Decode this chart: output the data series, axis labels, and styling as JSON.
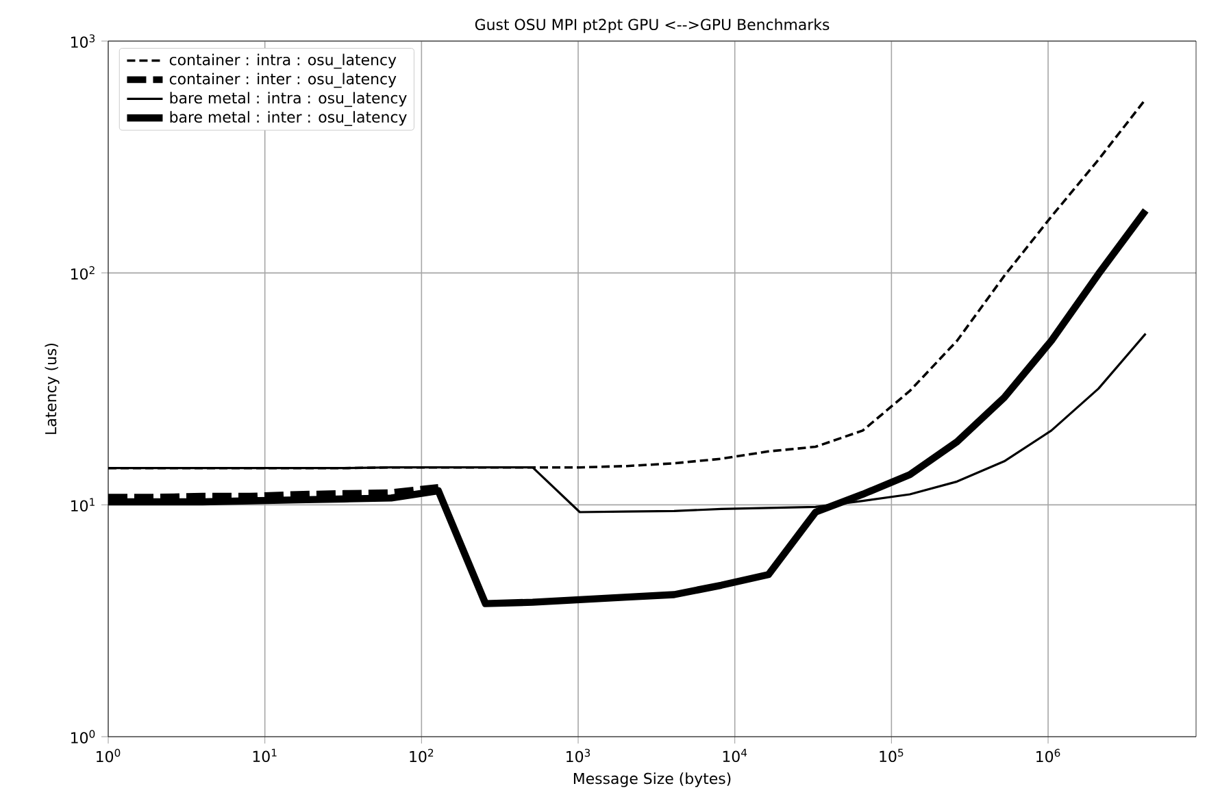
{
  "chart_data": {
    "type": "line",
    "title": "Gust OSU MPI pt2pt GPU <-->GPU Benchmarks",
    "xlabel": "Message Size (bytes)",
    "ylabel": "Latency (us)",
    "x": [
      1,
      2,
      4,
      8,
      16,
      32,
      64,
      128,
      256,
      512,
      1024,
      2048,
      4096,
      8192,
      16384,
      32768,
      65536,
      131072,
      262144,
      524288,
      1048576,
      2097152,
      4194304
    ],
    "series": [
      {
        "name": "container : intra : osu_latency",
        "color": "#000000",
        "line_style": "dashed",
        "values": [
          14.4,
          14.4,
          14.4,
          14.4,
          14.4,
          14.4,
          14.5,
          14.5,
          14.5,
          14.5,
          14.5,
          14.7,
          15.1,
          15.8,
          17.0,
          17.8,
          20.9,
          31,
          51,
          97,
          175,
          308,
          562
        ]
      },
      {
        "name": "container : inter : osu_latency",
        "color": "#000000",
        "line_style": "dashed",
        "values": [
          10.8,
          10.8,
          10.9,
          10.9,
          11.1,
          11.2,
          11.3,
          11.9,
          null,
          null,
          null,
          null,
          null,
          null,
          null,
          null,
          null,
          null,
          null,
          null,
          null,
          null,
          null
        ]
      },
      {
        "name": "bare metal : intra : osu_latency",
        "color": "#000000",
        "line_style": "solid",
        "values": [
          14.4,
          14.4,
          14.4,
          14.4,
          14.4,
          14.4,
          14.5,
          14.5,
          14.5,
          14.5,
          9.3,
          9.35,
          9.4,
          9.6,
          9.7,
          9.8,
          10.4,
          11.1,
          12.6,
          15.4,
          20.9,
          31.7,
          54.7
        ]
      },
      {
        "name": "bare metal : inter : osu_latency",
        "color": "#000000",
        "line_style": "solid",
        "values": [
          10.3,
          10.3,
          10.3,
          10.4,
          10.5,
          10.6,
          10.7,
          11.5,
          3.75,
          3.8,
          3.9,
          4.0,
          4.1,
          4.5,
          5.0,
          9.3,
          11.1,
          13.5,
          18.7,
          29,
          51,
          99,
          186
        ]
      }
    ],
    "log": "xy",
    "grid": true,
    "legend": "top left",
    "marker": "none",
    "xlim": [
      1,
      8800000
    ],
    "ylim": [
      1,
      1000
    ],
    "xticks": [
      {
        "value": 1,
        "label": "10$^{0}$"
      },
      {
        "value": 10,
        "label": "10$^{1}$"
      },
      {
        "value": 100,
        "label": "10$^{2}$"
      },
      {
        "value": 1000,
        "label": "10$^{3}$"
      },
      {
        "value": 10000,
        "label": "10$^{4}$"
      },
      {
        "value": 100000,
        "label": "10$^{5}$"
      },
      {
        "value": 1000000,
        "label": "10$^{6}$"
      }
    ],
    "yticks": [
      {
        "value": 1,
        "label": "10$^{0}$"
      },
      {
        "value": 10,
        "label": "10$^{1}$"
      },
      {
        "value": 100,
        "label": "10$^{2}$"
      },
      {
        "value": 1000,
        "label": "10$^{3}$"
      }
    ]
  }
}
